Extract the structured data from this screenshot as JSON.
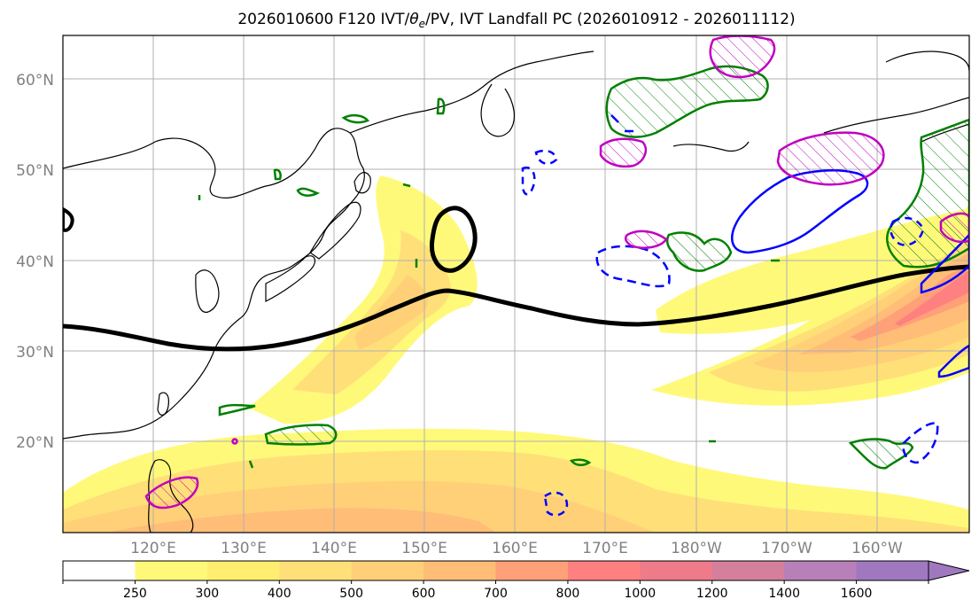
{
  "title": "2026010600 F120 IVT/θe/PV, IVT Landfall PC (2026010912 - 2026011112)",
  "title_parts": {
    "prefix": "2026010600 F120 IVT/",
    "theta": "θ",
    "sub": "e",
    "suffix": "/PV, IVT Landfall PC (2026010912 - 2026011112)"
  },
  "map": {
    "lat_labels": [
      "60°N",
      "50°N",
      "40°N",
      "30°N",
      "20°N"
    ],
    "lon_labels": [
      "120°E",
      "130°E",
      "140°E",
      "150°E",
      "160°E",
      "170°E",
      "180°W",
      "170°W",
      "160°W"
    ],
    "colors": {
      "land_line": "#000000",
      "grid": "#b0b0b0",
      "green_contour": "#008000",
      "blue_contour": "#0000ff",
      "magenta_contour": "#c000c0",
      "black_contour": "#000000"
    }
  },
  "colorbar": {
    "ticks": [
      "250",
      "300",
      "400",
      "500",
      "600",
      "700",
      "800",
      "1000",
      "1200",
      "1400",
      "1600"
    ],
    "colors": [
      "#ffffff",
      "#fff97a",
      "#ffee70",
      "#ffe078",
      "#ffd078",
      "#ffbd78",
      "#ffa078",
      "#ff8080",
      "#ee7a8a",
      "#d4809c",
      "#b880b8",
      "#a078c0"
    ]
  }
}
